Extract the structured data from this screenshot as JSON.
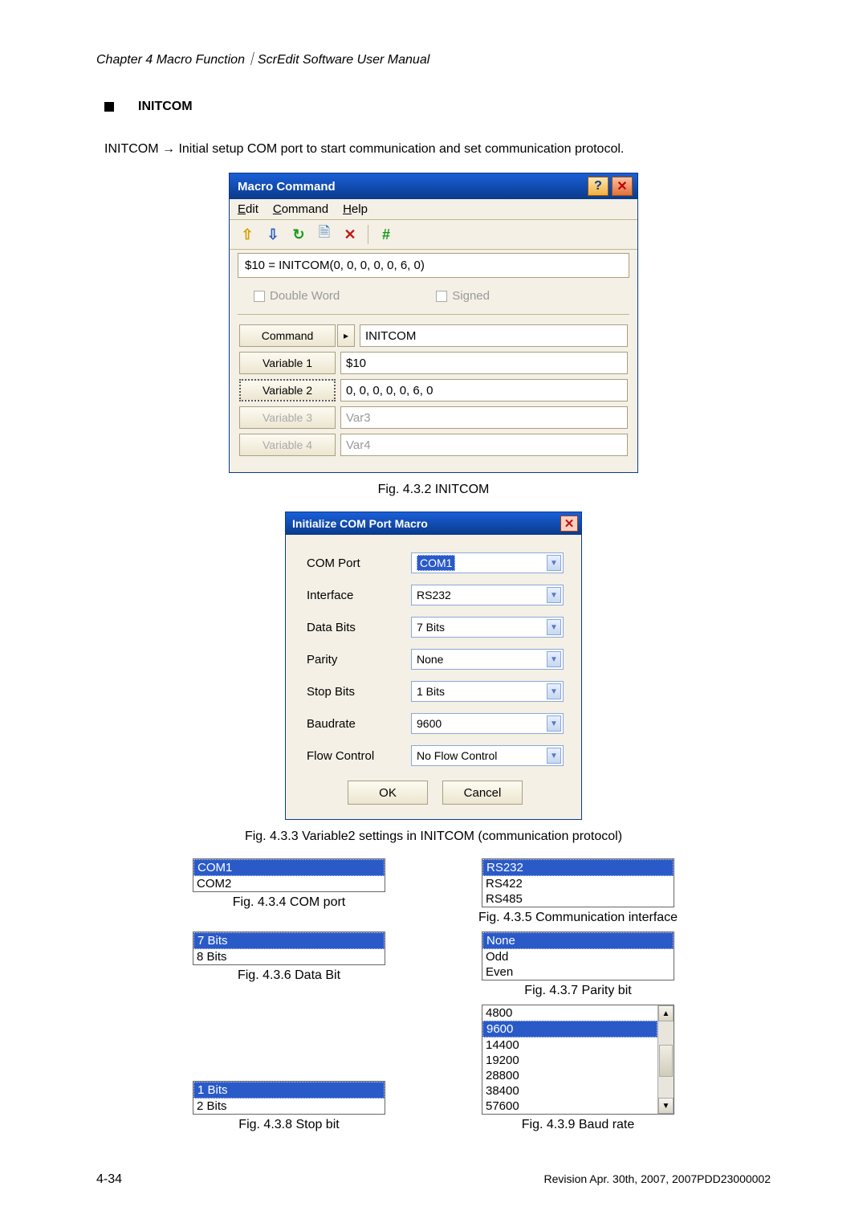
{
  "header": "Chapter 4  Macro Function｜ScrEdit Software User Manual",
  "section_title": "INITCOM",
  "description": "INITCOM → Initial setup COM port to start communication and set communication protocol.",
  "dlg1": {
    "title": "Macro Command",
    "menu": [
      "Edit",
      "Command",
      "Help"
    ],
    "formula": "$10 = INITCOM(0, 0, 0, 0, 0, 6, 0)",
    "chk1": "Double Word",
    "chk2": "Signed",
    "command_label": "Command",
    "command_val": "INITCOM",
    "vars": [
      {
        "label": "Variable 1",
        "value": "$10",
        "enabled": true
      },
      {
        "label": "Variable 2",
        "value": "0, 0, 0, 0, 0, 6, 0",
        "enabled": true,
        "active": true
      },
      {
        "label": "Variable 3",
        "value": "Var3",
        "enabled": false
      },
      {
        "label": "Variable 4",
        "value": "Var4",
        "enabled": false
      }
    ]
  },
  "cap1": "Fig. 4.3.2 INITCOM",
  "dlg2": {
    "title": "Initialize COM Port Macro",
    "rows": [
      {
        "label": "COM Port",
        "value": "COM1",
        "selected": true
      },
      {
        "label": "Interface",
        "value": "RS232"
      },
      {
        "label": "Data Bits",
        "value": "7 Bits"
      },
      {
        "label": "Parity",
        "value": "None"
      },
      {
        "label": "Stop Bits",
        "value": "1 Bits"
      },
      {
        "label": "Baudrate",
        "value": "9600"
      },
      {
        "label": "Flow Control",
        "value": "No Flow Control"
      }
    ],
    "ok": "OK",
    "cancel": "Cancel"
  },
  "cap2": "Fig. 4.3.3 Variable2 settings in INITCOM (communication protocol)",
  "lists": {
    "com": {
      "items": [
        "COM1",
        "COM2"
      ],
      "sel": 0,
      "caption": "Fig. 4.3.4 COM port"
    },
    "iface": {
      "items": [
        "RS232",
        "RS422",
        "RS485"
      ],
      "sel": 0,
      "caption": "Fig. 4.3.5 Communication interface"
    },
    "databit": {
      "items": [
        "7 Bits",
        "8 Bits"
      ],
      "sel": 0,
      "caption": "Fig. 4.3.6 Data Bit"
    },
    "parity": {
      "items": [
        "None",
        "Odd",
        "Even"
      ],
      "sel": 0,
      "caption": "Fig. 4.3.7 Parity bit"
    },
    "stopbit": {
      "items": [
        "1 Bits",
        "2 Bits"
      ],
      "sel": 0,
      "caption": "Fig. 4.3.8 Stop bit"
    },
    "baud": {
      "items": [
        "4800",
        "9600",
        "14400",
        "19200",
        "28800",
        "38400",
        "57600"
      ],
      "sel": 1,
      "caption": "Fig. 4.3.9 Baud rate"
    }
  },
  "footer": {
    "page": "4-34",
    "rev": "Revision Apr. 30th, 2007, 2007PDD23000002"
  },
  "colors": {
    "title_grad_top": "#1a5fd8",
    "title_grad_bot": "#0a3a8a",
    "panel_bg": "#f4f0e6",
    "sel_bg": "#2a5ac8"
  }
}
